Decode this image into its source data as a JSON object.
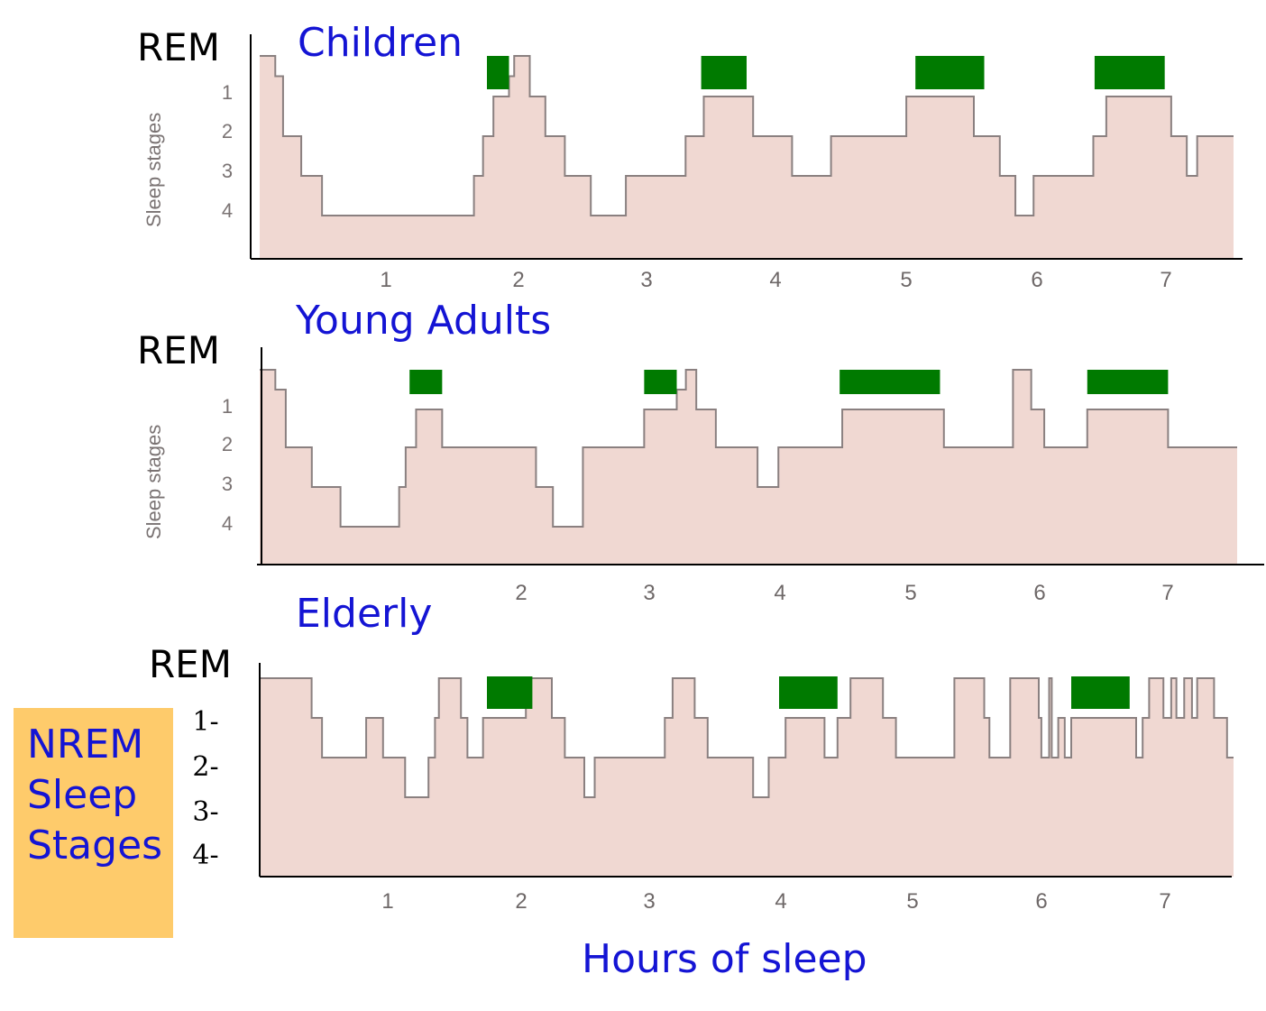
{
  "chart_data": [
    {
      "type": "line",
      "title": "Children",
      "rem_label": "REM",
      "ylabel": "Sleep stages",
      "y_tick_labels": [
        "1",
        "2",
        "3",
        "4"
      ],
      "x_tick_labels": [
        "1",
        "2",
        "3",
        "4",
        "5",
        "6",
        "7"
      ],
      "xlim": [
        0,
        7.5
      ],
      "step_series": [
        [
          0,
          0
        ],
        [
          0.12,
          0.5
        ],
        [
          0.18,
          2
        ],
        [
          0.32,
          3
        ],
        [
          0.48,
          4
        ],
        [
          1.65,
          3
        ],
        [
          1.72,
          2
        ],
        [
          1.8,
          1
        ],
        [
          1.92,
          0.5
        ],
        [
          1.96,
          0
        ],
        [
          2.08,
          1
        ],
        [
          2.2,
          2
        ],
        [
          2.35,
          3
        ],
        [
          2.55,
          4
        ],
        [
          2.82,
          3
        ],
        [
          3.28,
          2
        ],
        [
          3.42,
          1
        ],
        [
          3.8,
          2
        ],
        [
          4.1,
          3
        ],
        [
          4.4,
          2
        ],
        [
          4.98,
          1
        ],
        [
          5.5,
          2
        ],
        [
          5.7,
          3
        ],
        [
          5.82,
          4
        ],
        [
          5.96,
          3
        ],
        [
          6.42,
          2
        ],
        [
          6.52,
          1
        ],
        [
          7.02,
          2
        ],
        [
          7.14,
          3
        ],
        [
          7.22,
          2
        ],
        [
          7.5,
          2
        ]
      ],
      "rem_periods": [
        [
          1.75,
          1.92
        ],
        [
          3.4,
          3.75
        ],
        [
          5.05,
          5.58
        ],
        [
          6.43,
          6.97
        ]
      ]
    },
    {
      "type": "line",
      "title": "Young Adults",
      "rem_label": "REM",
      "ylabel": "Sleep stages",
      "y_tick_labels": [
        "1",
        "2",
        "3",
        "4"
      ],
      "x_tick_labels": [
        "2",
        "3",
        "4",
        "5",
        "6",
        "7"
      ],
      "xlim": [
        0,
        7.5
      ],
      "step_series": [
        [
          0,
          0
        ],
        [
          0.12,
          0.5
        ],
        [
          0.2,
          2
        ],
        [
          0.4,
          3
        ],
        [
          0.62,
          4
        ],
        [
          1.07,
          3
        ],
        [
          1.12,
          2
        ],
        [
          1.2,
          1
        ],
        [
          1.4,
          2
        ],
        [
          1.9,
          2
        ],
        [
          2.12,
          3
        ],
        [
          2.25,
          4
        ],
        [
          2.48,
          2
        ],
        [
          2.95,
          1
        ],
        [
          3.2,
          0.5
        ],
        [
          3.27,
          0
        ],
        [
          3.35,
          1
        ],
        [
          3.5,
          2
        ],
        [
          3.82,
          3
        ],
        [
          3.98,
          2
        ],
        [
          4.47,
          1
        ],
        [
          5.25,
          2
        ],
        [
          5.6,
          2
        ],
        [
          5.78,
          0
        ],
        [
          5.92,
          1
        ],
        [
          6.02,
          2
        ],
        [
          6.35,
          1
        ],
        [
          6.97,
          2
        ],
        [
          7.5,
          2
        ]
      ],
      "rem_periods": [
        [
          1.15,
          1.4
        ],
        [
          2.95,
          3.2
        ],
        [
          4.45,
          5.22
        ],
        [
          6.35,
          6.97
        ]
      ]
    },
    {
      "type": "line",
      "title": "Elderly",
      "rem_label": "REM",
      "ylabel": "",
      "y_tick_labels": [
        "1-",
        "2-",
        "3-",
        "4-"
      ],
      "x_tick_labels": [
        "1",
        "2",
        "3",
        "4",
        "5",
        "6",
        "7"
      ],
      "xlim": [
        0,
        7.5
      ],
      "step_series": [
        [
          0,
          0
        ],
        [
          0.4,
          1
        ],
        [
          0.48,
          2
        ],
        [
          0.8,
          2
        ],
        [
          0.82,
          1
        ],
        [
          0.95,
          2
        ],
        [
          1.05,
          2
        ],
        [
          1.12,
          3
        ],
        [
          1.3,
          2
        ],
        [
          1.35,
          1
        ],
        [
          1.38,
          0
        ],
        [
          1.55,
          1
        ],
        [
          1.6,
          2
        ],
        [
          1.72,
          1
        ],
        [
          2.05,
          0
        ],
        [
          2.25,
          1
        ],
        [
          2.35,
          2
        ],
        [
          2.4,
          2
        ],
        [
          2.5,
          3
        ],
        [
          2.58,
          2
        ],
        [
          3.0,
          2
        ],
        [
          3.12,
          1
        ],
        [
          3.18,
          0
        ],
        [
          3.35,
          1
        ],
        [
          3.45,
          2
        ],
        [
          3.7,
          2
        ],
        [
          3.8,
          3
        ],
        [
          3.92,
          2
        ],
        [
          4.05,
          1
        ],
        [
          4.35,
          2
        ],
        [
          4.45,
          1
        ],
        [
          4.55,
          0
        ],
        [
          4.8,
          1
        ],
        [
          4.9,
          2
        ],
        [
          5.2,
          2
        ],
        [
          5.35,
          0
        ],
        [
          5.58,
          1
        ],
        [
          5.62,
          2
        ],
        [
          5.75,
          2
        ],
        [
          5.78,
          0
        ],
        [
          6.0,
          1
        ],
        [
          6.02,
          2
        ],
        [
          6.08,
          0
        ],
        [
          6.1,
          2
        ],
        [
          6.15,
          1
        ],
        [
          6.2,
          2
        ],
        [
          6.25,
          1
        ],
        [
          6.4,
          1
        ],
        [
          6.6,
          1
        ],
        [
          6.75,
          2
        ],
        [
          6.8,
          1
        ],
        [
          6.85,
          0
        ],
        [
          6.96,
          1
        ],
        [
          7.02,
          0
        ],
        [
          7.06,
          1
        ],
        [
          7.12,
          0
        ],
        [
          7.18,
          1
        ],
        [
          7.22,
          0
        ],
        [
          7.3,
          0
        ],
        [
          7.35,
          1
        ],
        [
          7.45,
          2
        ],
        [
          7.5,
          2
        ]
      ],
      "rem_periods": [
        [
          1.75,
          2.1
        ],
        [
          4.0,
          4.45
        ],
        [
          6.25,
          6.7
        ]
      ]
    }
  ],
  "legend": {
    "lines": [
      "NREM",
      "Sleep",
      "Stages"
    ]
  },
  "xlabel": "Hours of sleep",
  "colors": {
    "plot_fill": "#f0d8d2",
    "step_line": "#8a8080",
    "rem_bar": "#007a00",
    "title_blue": "#1414d4",
    "legend_bg": "#fecb6b"
  }
}
